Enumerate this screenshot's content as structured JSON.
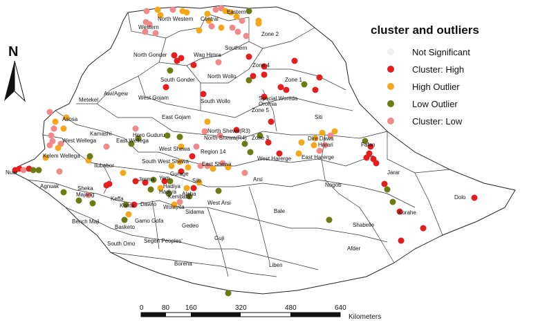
{
  "legend": {
    "title": "cluster and outliers",
    "items": [
      {
        "label": "Not Significant",
        "color": "#f0f0f0"
      },
      {
        "label": "Cluster: High",
        "color": "#e21e1e"
      },
      {
        "label": "High Outlier",
        "color": "#f5a71c"
      },
      {
        "label": "Low Outlier",
        "color": "#6e7a14"
      },
      {
        "label": "Cluster: Low",
        "color": "#f08a8a"
      }
    ]
  },
  "north_arrow": {
    "label": "N"
  },
  "scale_bar": {
    "ticks": [
      "0",
      "80",
      "160",
      "320",
      "480",
      "640"
    ],
    "units": "Kilometers"
  },
  "zones": [
    "Eastern",
    "North Western",
    "Central",
    "Western",
    "Zone 2",
    "Southern",
    "North Gonder",
    "Wag Himra",
    "Zone 4",
    "North Wollo",
    "Zone 1",
    "South Gonder",
    "Awi/Agew",
    "Metekel",
    "West Gojam",
    "South Wollo",
    "Special Woreda",
    "Oromia",
    "Zone 5",
    "East Gojam",
    "Siti",
    "Asosa",
    "Kamashi",
    "North Shewa(R3)",
    "Horo Guduru",
    "Zone 3",
    "North Shewa(R4)",
    "West Wellega",
    "East Wellega",
    "Dire Dawa",
    "Harari",
    "Fafan",
    "West Shewa",
    "Region 14",
    "Kelem Wellega",
    "West Harerge",
    "East Harerge",
    "Ilubabor",
    "South West Shewa",
    "East Shewa",
    "Nuer",
    "Jarar",
    "Arsi",
    "Gurage",
    "Nogob",
    "Agnuak",
    "Jimma",
    "Yem",
    "Silti",
    "Hadiya",
    "Sheka",
    "Majang",
    "Kembata",
    "Alaba",
    "Keffa",
    "Dawro",
    "Hadiya",
    "Konta",
    "Wolayita",
    "West Arsi",
    "Bale",
    "Sidama",
    "Dolo",
    "Bench Maji",
    "Gamo Gofa",
    "Korahe",
    "Basketo",
    "Gedeo",
    "Shabelle",
    "Segen Peoples'",
    "Guji",
    "South Omo",
    "Afder",
    "Borena",
    "Liben"
  ]
}
